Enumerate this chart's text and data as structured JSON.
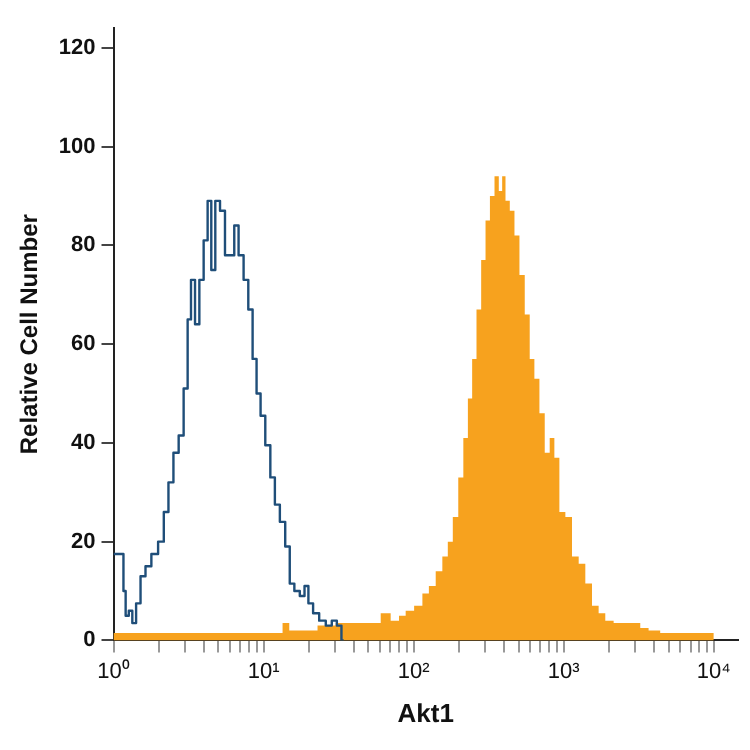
{
  "chart_data": {
    "type": "step",
    "xlabel": "Akt1",
    "ylabel": "Relative Cell Number",
    "log": "x",
    "grid": false,
    "legend": false,
    "xlim": [
      1,
      14500
    ],
    "ylim": [
      0,
      124
    ],
    "xticks": [
      {
        "value": 1,
        "label": "10⁰"
      },
      {
        "value": 2,
        "label": null
      },
      {
        "value": 3,
        "label": null
      },
      {
        "value": 4,
        "label": null
      },
      {
        "value": 5,
        "label": null
      },
      {
        "value": 6,
        "label": null
      },
      {
        "value": 7,
        "label": null
      },
      {
        "value": 8,
        "label": null
      },
      {
        "value": 9,
        "label": null
      },
      {
        "value": 10,
        "label": "10¹"
      },
      {
        "value": 20,
        "label": null
      },
      {
        "value": 30,
        "label": null
      },
      {
        "value": 40,
        "label": null
      },
      {
        "value": 50,
        "label": null
      },
      {
        "value": 60,
        "label": null
      },
      {
        "value": 70,
        "label": null
      },
      {
        "value": 80,
        "label": null
      },
      {
        "value": 90,
        "label": null
      },
      {
        "value": 100,
        "label": "10²"
      },
      {
        "value": 200,
        "label": null
      },
      {
        "value": 300,
        "label": null
      },
      {
        "value": 400,
        "label": null
      },
      {
        "value": 500,
        "label": null
      },
      {
        "value": 600,
        "label": null
      },
      {
        "value": 700,
        "label": null
      },
      {
        "value": 800,
        "label": null
      },
      {
        "value": 900,
        "label": null
      },
      {
        "value": 1000,
        "label": "10³"
      },
      {
        "value": 2000,
        "label": null
      },
      {
        "value": 3000,
        "label": null
      },
      {
        "value": 4000,
        "label": null
      },
      {
        "value": 5000,
        "label": null
      },
      {
        "value": 6000,
        "label": null
      },
      {
        "value": 7000,
        "label": null
      },
      {
        "value": 8000,
        "label": null
      },
      {
        "value": 9000,
        "label": null
      },
      {
        "value": 10000,
        "label": "10⁴"
      }
    ],
    "yticks": [
      0,
      20,
      40,
      60,
      80,
      100,
      120
    ],
    "series": [
      {
        "type": "area",
        "color": "#f7a21e",
        "x": [
          1,
          12.7,
          14.1,
          15.6,
          21.2,
          24.7,
          37.1,
          55.9,
          65.1,
          75.9,
          84.1,
          93.1,
          109,
          120,
          133,
          148,
          163,
          175,
          190,
          207,
          222,
          238,
          253,
          272,
          292,
          311,
          334,
          358,
          381,
          397,
          422,
          453,
          487,
          528,
          573,
          615,
          661,
          718,
          778,
          836,
          898,
          975,
          1079,
          1196,
          1324,
          1466,
          1624,
          1798,
          1992,
          2323,
          2999,
          3493,
          3871,
          4990,
          10000
        ],
        "values": [
          1.5,
          1.5,
          3.5,
          2,
          2,
          3,
          3.5,
          3.5,
          5.5,
          4,
          5,
          6,
          7,
          9.5,
          11,
          14,
          17,
          20,
          25,
          33,
          41,
          49,
          57,
          67,
          77,
          85,
          90,
          94,
          91,
          94,
          89,
          87,
          82,
          74,
          66,
          57,
          53,
          46,
          38,
          41,
          37,
          26,
          25,
          17,
          15.5,
          11.5,
          7,
          5.5,
          4,
          3.5,
          3.5,
          2.5,
          2,
          1.5,
          1.5
        ]
      },
      {
        "color": "#1f4e79",
        "x": [
          1,
          1.15,
          1.18,
          1.23,
          1.3,
          1.37,
          1.46,
          1.57,
          1.7,
          1.88,
          2.09,
          2.24,
          2.41,
          2.61,
          2.83,
          3.04,
          3.2,
          3.37,
          3.62,
          3.85,
          4.13,
          4.35,
          4.62,
          4.92,
          5.34,
          5.73,
          6.22,
          6.54,
          7.1,
          7.63,
          8.2,
          8.71,
          9.26,
          9.85,
          10.7,
          11.5,
          12.3,
          13.4,
          14.5,
          15.4,
          16.7,
          18.2,
          19.3,
          20.5,
          22.3,
          24.7,
          27.3,
          29.7,
          31.9,
          34.2
        ],
        "values": [
          17.5,
          17.5,
          10,
          5,
          6,
          3.5,
          7.5,
          13,
          15,
          17.5,
          20,
          26,
          32,
          38,
          41.5,
          51,
          65,
          73,
          64,
          73,
          81,
          89,
          75,
          89,
          87,
          78,
          78,
          84,
          78,
          73,
          67,
          57,
          50,
          45.5,
          39.5,
          33,
          27.5,
          24,
          19,
          11.5,
          10,
          9,
          11,
          7.5,
          5.5,
          4,
          3,
          4,
          3,
          0
        ]
      }
    ]
  }
}
